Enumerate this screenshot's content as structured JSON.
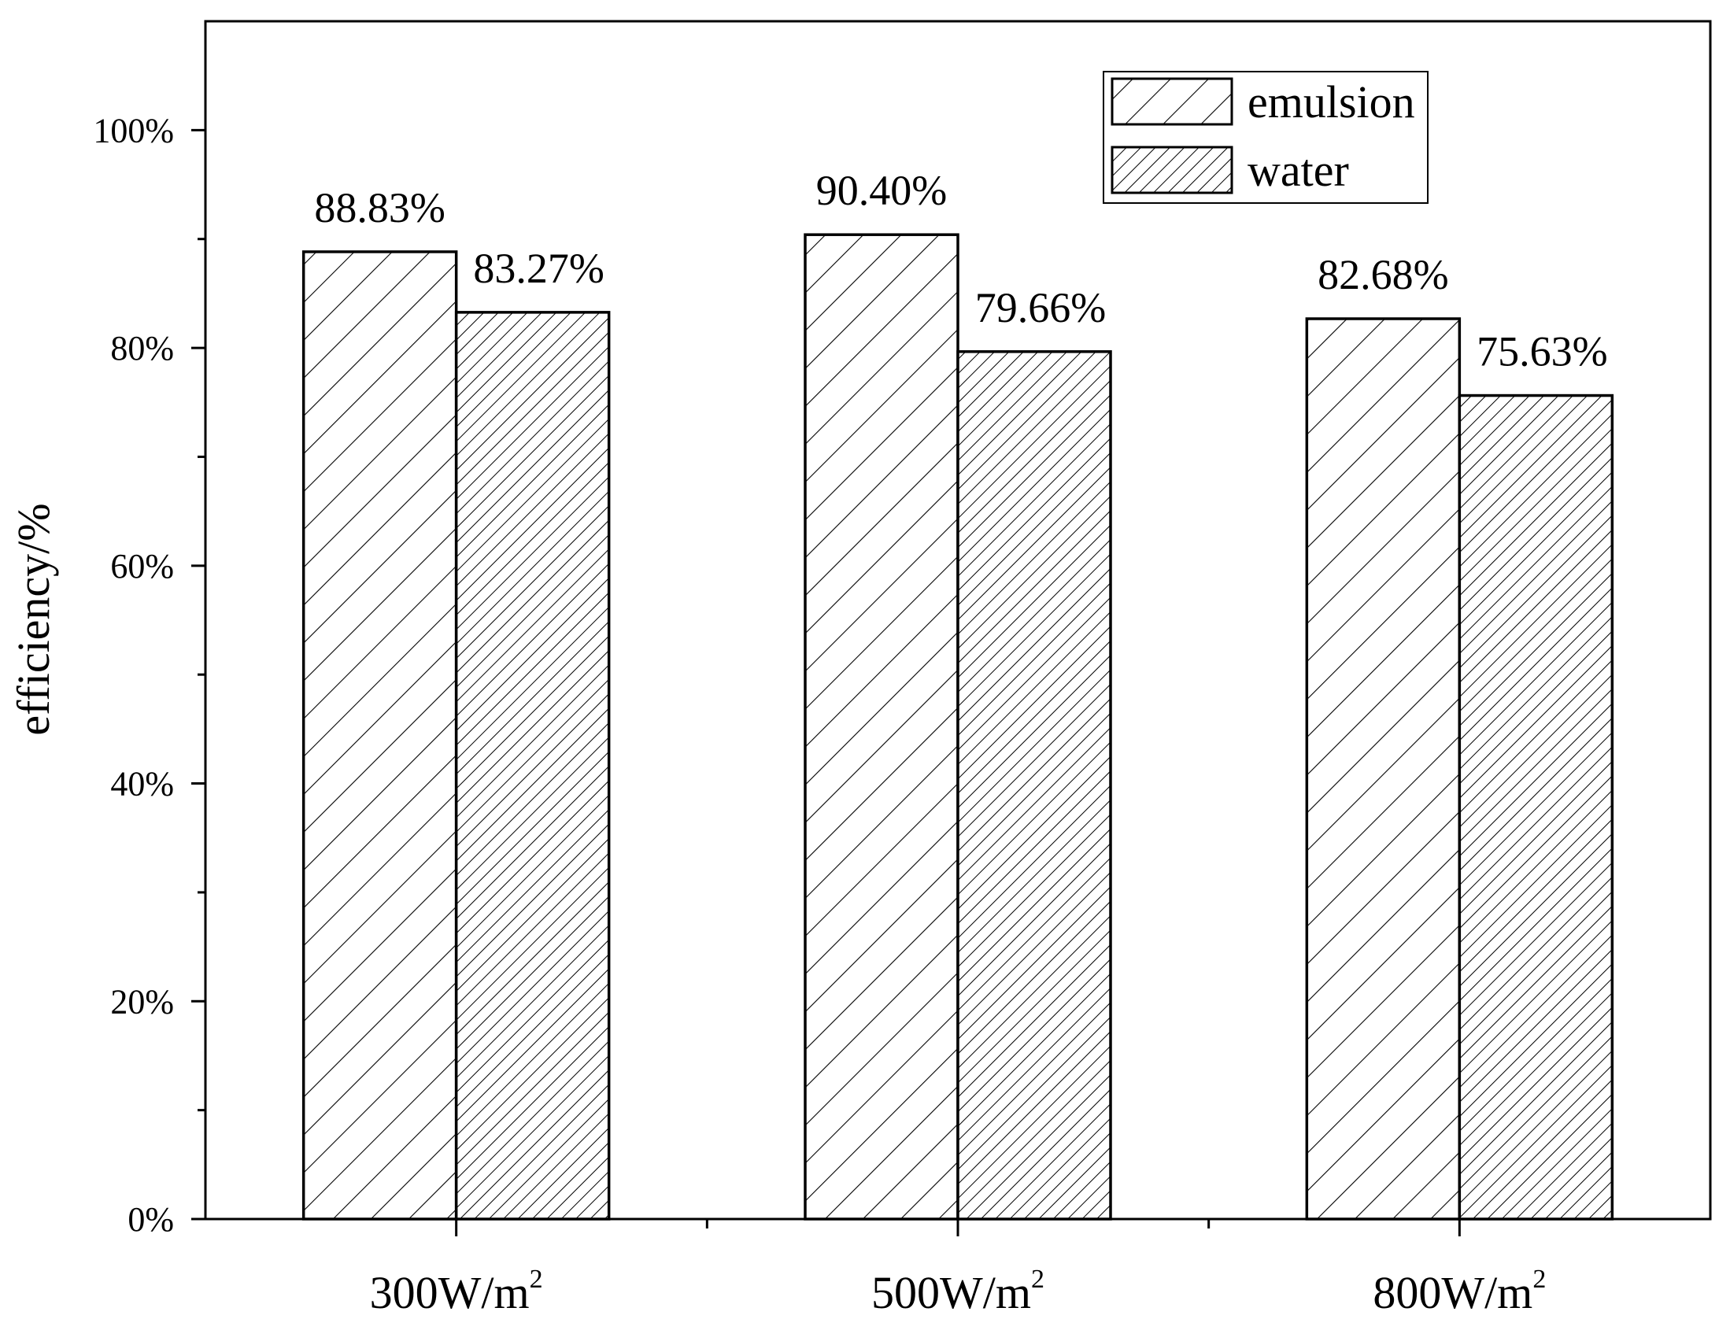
{
  "chart_data": {
    "type": "bar",
    "title": "",
    "xlabel": "",
    "ylabel": "efficiency/%",
    "ylim": [
      0,
      110
    ],
    "yticks": [
      0,
      20,
      40,
      60,
      80,
      100
    ],
    "ytick_labels": [
      "0%",
      "20%",
      "40%",
      "60%",
      "80%",
      "100%"
    ],
    "categories": [
      {
        "base": "300W/m",
        "sup": "2"
      },
      {
        "base": "500W/m",
        "sup": "2"
      },
      {
        "base": "800W/m",
        "sup": "2"
      }
    ],
    "series": [
      {
        "name": "emulsion",
        "pattern": "sparse-hatch",
        "values": [
          88.83,
          90.4,
          82.68
        ],
        "labels": [
          "88.83%",
          "90.40%",
          "82.68%"
        ]
      },
      {
        "name": "water",
        "pattern": "dense-hatch",
        "values": [
          83.27,
          79.66,
          75.63
        ],
        "labels": [
          "83.27%",
          "79.66%",
          "75.63%"
        ]
      }
    ],
    "legend_position": "top-right",
    "grid": false
  }
}
